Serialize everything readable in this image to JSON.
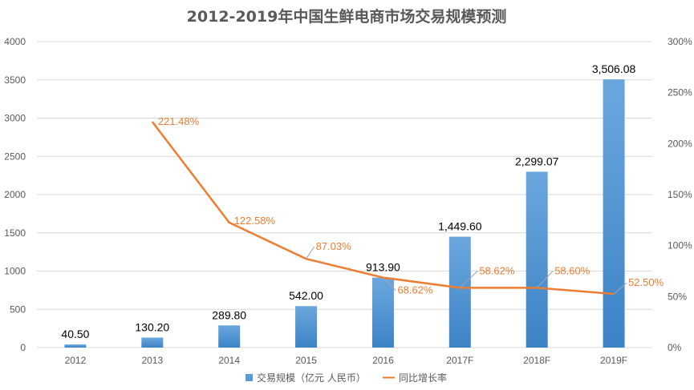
{
  "chart_data": {
    "type": "bar",
    "title": "2012-2019年中国生鲜电商市场交易规模预测",
    "categories": [
      "2012",
      "2013",
      "2014",
      "2015",
      "2016",
      "2017F",
      "2018F",
      "2019F"
    ],
    "series": [
      {
        "name": "交易规模（亿元 人民币）",
        "type": "bar",
        "axis": "left",
        "values": [
          40.5,
          130.2,
          289.8,
          542.0,
          913.9,
          1449.6,
          2299.07,
          3506.08
        ],
        "labels": [
          "40.50",
          "130.20",
          "289.80",
          "542.00",
          "913.90",
          "1,449.60",
          "2,299.07",
          "3,506.08"
        ]
      },
      {
        "name": "同比增长率",
        "type": "line",
        "axis": "right",
        "values": [
          null,
          221.48,
          122.58,
          87.03,
          68.62,
          58.62,
          58.6,
          52.5
        ],
        "labels": [
          "",
          "221.48%",
          "122.58%",
          "87.03%",
          "68.62%",
          "58.62%",
          "58.60%",
          "52.50%"
        ]
      }
    ],
    "ylim": [
      0,
      4000
    ],
    "yticks": [
      "0",
      "500",
      "1000",
      "1500",
      "2000",
      "2500",
      "3000",
      "3500",
      "4000"
    ],
    "y2lim": [
      0,
      300
    ],
    "y2ticks": [
      "0%",
      "50%",
      "100%",
      "150%",
      "200%",
      "250%",
      "300%"
    ],
    "xlabel": "",
    "ylabel": "",
    "grid": true,
    "legend": "bottom-center",
    "colors": {
      "bar": "#5B9BD5",
      "bar_dark": "#2E75B6",
      "line": "#ED7D31",
      "grid": "#D9D9D9"
    }
  },
  "legend": {
    "bar_label": "交易规模（亿元 人民币）",
    "line_label": "同比增长率"
  }
}
